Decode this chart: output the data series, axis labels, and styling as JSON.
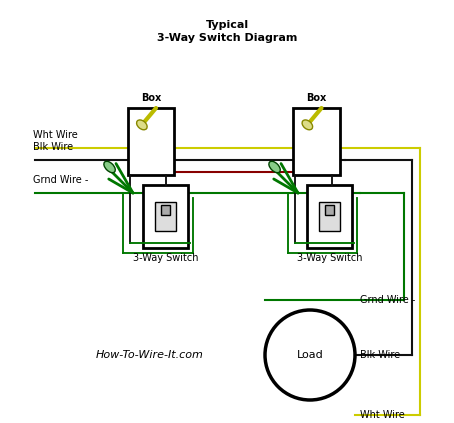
{
  "title_line1": "Typical",
  "title_line2": "3-Way Switch Diagram",
  "background_color": "#ffffff",
  "wht_wire_color": "#cccc00",
  "blk_wire_color": "#111111",
  "red_wire_color": "#880000",
  "grn_wire_color": "#007700",
  "website": "How-To-Wire-It.com",
  "label_box": "Box",
  "label_switch": "3-Way Switch",
  "label_load": "Load",
  "label_wht": "Wht Wire",
  "label_blk": "Blk Wire",
  "label_grnd": "Grnd Wire",
  "font_size_title": 8,
  "font_size_label": 7,
  "font_size_website": 8
}
